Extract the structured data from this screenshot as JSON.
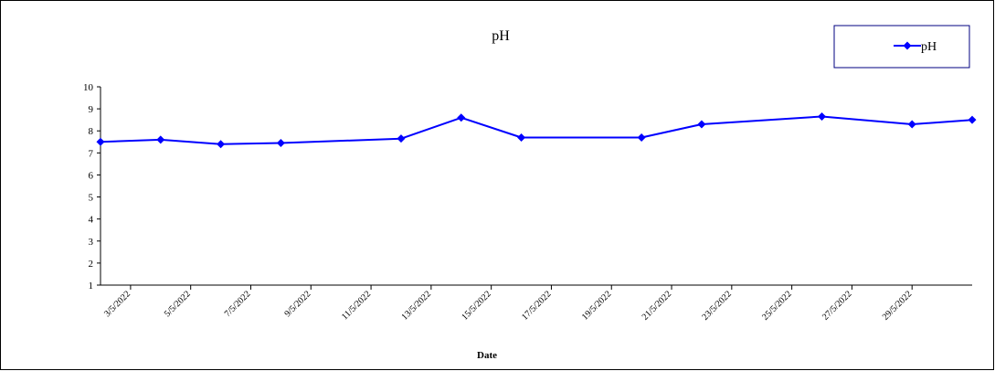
{
  "chart_data": {
    "type": "line",
    "title": "pH",
    "xlabel": "Date",
    "ylabel": "",
    "ylim": [
      1,
      10
    ],
    "yticks": [
      1,
      2,
      3,
      4,
      5,
      6,
      7,
      8,
      9,
      10
    ],
    "x_range": [
      "2022-05-02",
      "2022-05-31"
    ],
    "x_tick_labels": [
      "3/5/2022",
      "5/5/2022",
      "7/5/2022",
      "9/5/2022",
      "11/5/2022",
      "13/5/2022",
      "15/5/2022",
      "17/5/2022",
      "19/5/2022",
      "21/5/2022",
      "23/5/2022",
      "25/5/2022",
      "27/5/2022",
      "29/5/2022"
    ],
    "x_tick_dates": [
      "2022-05-03",
      "2022-05-05",
      "2022-05-07",
      "2022-05-09",
      "2022-05-11",
      "2022-05-13",
      "2022-05-15",
      "2022-05-17",
      "2022-05-19",
      "2022-05-21",
      "2022-05-23",
      "2022-05-25",
      "2022-05-27",
      "2022-05-29"
    ],
    "grid": false,
    "legend": {
      "position": "top-right",
      "entries": [
        "pH"
      ]
    },
    "series": [
      {
        "name": "pH",
        "color": "#0000ff",
        "marker": "diamond",
        "points": [
          {
            "x": "2022-05-02",
            "y": 7.5
          },
          {
            "x": "2022-05-04",
            "y": 7.6
          },
          {
            "x": "2022-05-06",
            "y": 7.4
          },
          {
            "x": "2022-05-08",
            "y": 7.45
          },
          {
            "x": "2022-05-12",
            "y": 7.65
          },
          {
            "x": "2022-05-14",
            "y": 8.6
          },
          {
            "x": "2022-05-16",
            "y": 7.7
          },
          {
            "x": "2022-05-20",
            "y": 7.7
          },
          {
            "x": "2022-05-22",
            "y": 8.3
          },
          {
            "x": "2022-05-26",
            "y": 8.65
          },
          {
            "x": "2022-05-29",
            "y": 8.3
          },
          {
            "x": "2022-05-31",
            "y": 8.5
          }
        ]
      }
    ]
  }
}
